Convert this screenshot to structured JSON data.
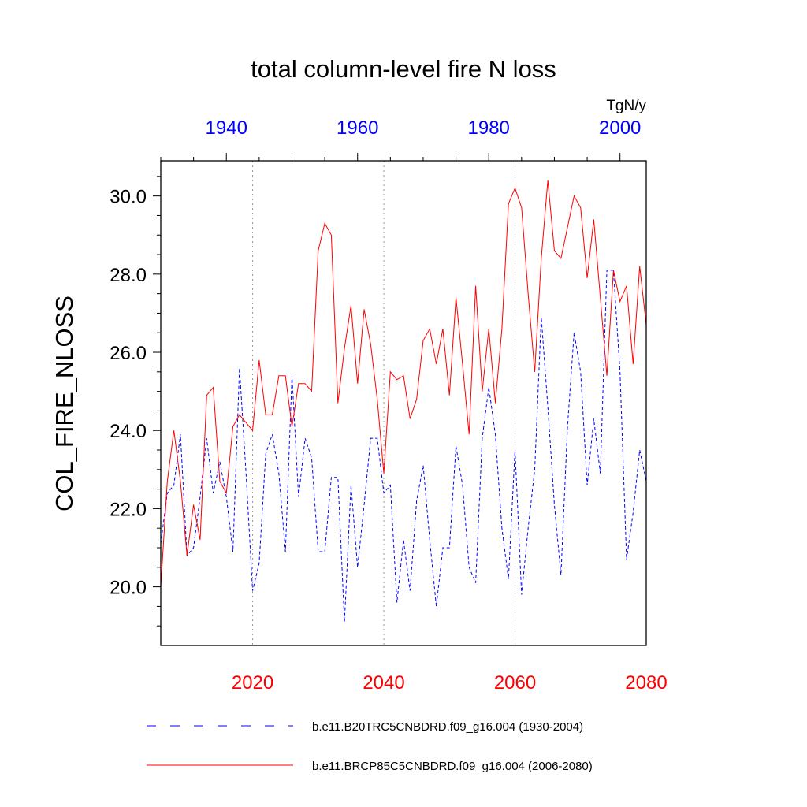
{
  "chart_data": {
    "type": "line",
    "title": "total column-level fire N loss",
    "units": "TgN/y",
    "ylabel": "COL_FIRE_NLOSS",
    "ylim": [
      18.5,
      30.9
    ],
    "yticks": [
      20.0,
      22.0,
      24.0,
      26.0,
      28.0,
      30.0
    ],
    "ytick_labels": [
      "20.0",
      "22.0",
      "24.0",
      "26.0",
      "28.0",
      "30.0"
    ],
    "bottom_axis": {
      "range": [
        2006,
        2080
      ],
      "ticks": [
        2020,
        2040,
        2060,
        2080
      ],
      "labels": [
        "2020",
        "2040",
        "2060",
        "2080"
      ],
      "color": "#ff0000"
    },
    "top_axis": {
      "range": [
        1930,
        2004
      ],
      "ticks": [
        1940,
        1960,
        1980,
        2000
      ],
      "labels": [
        "1940",
        "1960",
        "1980",
        "2000"
      ],
      "color": "#0000ff"
    },
    "grid": "vertical dotted lines at 2020, 2040, 2060",
    "legend_position": "bottom",
    "series": [
      {
        "name": "b.e11.B20TRC5CNBDRD.f09_g16.004 (1930-2004)",
        "axis": "top",
        "color": "#0000ff",
        "dash": "dashed",
        "x_start": 1930,
        "values": [
          21.1,
          22.4,
          22.6,
          23.9,
          20.8,
          21.0,
          22.3,
          23.8,
          22.4,
          23.2,
          22.3,
          20.9,
          25.6,
          22.9,
          19.9,
          20.6,
          23.4,
          23.9,
          22.9,
          20.9,
          25.4,
          22.3,
          23.8,
          23.3,
          20.9,
          20.9,
          22.8,
          22.8,
          19.1,
          22.6,
          20.5,
          22.1,
          23.8,
          23.8,
          22.4,
          22.6,
          19.6,
          21.2,
          19.9,
          22.2,
          23.1,
          21.2,
          19.5,
          21.0,
          21.0,
          23.6,
          22.6,
          20.5,
          20.1,
          23.8,
          25.1,
          23.9,
          21.5,
          20.2,
          23.5,
          19.8,
          21.5,
          23.0,
          26.9,
          24.6,
          22.1,
          20.3,
          24.1,
          26.5,
          25.5,
          22.6,
          24.3,
          22.9,
          28.1,
          28.1,
          25.5,
          20.7,
          21.9,
          23.5,
          22.7
        ]
      },
      {
        "name": "b.e11.BRCP85C5CNBDRD.f09_g16.004 (2006-2080)",
        "axis": "bottom",
        "color": "#ff0000",
        "dash": "solid",
        "x_start": 2006,
        "values": [
          20.0,
          22.7,
          24.0,
          22.7,
          20.8,
          22.1,
          21.2,
          24.9,
          25.1,
          22.7,
          22.4,
          24.1,
          24.4,
          24.2,
          24.0,
          25.8,
          24.4,
          24.4,
          25.4,
          25.4,
          24.1,
          25.2,
          25.2,
          25.0,
          28.6,
          29.3,
          29.0,
          24.7,
          26.1,
          27.2,
          25.2,
          27.1,
          26.2,
          24.8,
          22.9,
          25.5,
          25.3,
          25.4,
          24.3,
          24.8,
          26.3,
          26.6,
          25.7,
          26.6,
          24.9,
          27.4,
          25.7,
          23.9,
          27.7,
          25.0,
          26.6,
          24.7,
          26.6,
          29.8,
          30.2,
          29.7,
          27.5,
          25.5,
          28.4,
          30.4,
          28.6,
          28.4,
          29.2,
          30.0,
          29.7,
          27.9,
          29.4,
          27.4,
          25.4,
          28.1,
          27.3,
          27.7,
          25.7,
          28.2,
          26.7
        ]
      }
    ]
  }
}
